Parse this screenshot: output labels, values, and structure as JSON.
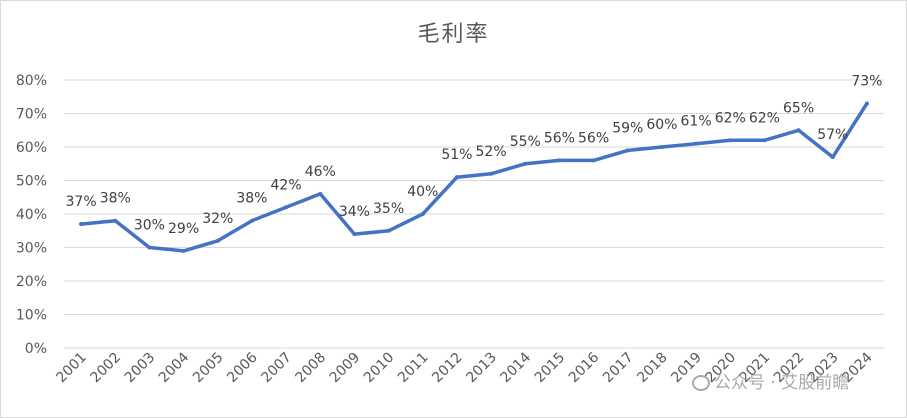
{
  "chart_data": {
    "type": "line",
    "title": "毛利率",
    "xlabel": "",
    "ylabel": "",
    "ylim": [
      0,
      0.8
    ],
    "yticks": [
      "0%",
      "10%",
      "20%",
      "30%",
      "40%",
      "50%",
      "60%",
      "70%",
      "80%"
    ],
    "categories": [
      "2001",
      "2002",
      "2003",
      "2004",
      "2005",
      "2006",
      "2007",
      "2008",
      "2009",
      "2010",
      "2011",
      "2012",
      "2013",
      "2014",
      "2015",
      "2016",
      "2017",
      "2018",
      "2019",
      "2020",
      "2021",
      "2022",
      "2023",
      "2024"
    ],
    "series": [
      {
        "values": [
          0.37,
          0.38,
          0.3,
          0.29,
          0.32,
          0.38,
          0.42,
          0.46,
          0.34,
          0.35,
          0.4,
          0.51,
          0.52,
          0.55,
          0.56,
          0.56,
          0.59,
          0.6,
          0.61,
          0.62,
          0.62,
          0.65,
          0.57,
          0.73
        ],
        "labels": [
          "37%",
          "38%",
          "30%",
          "29%",
          "32%",
          "38%",
          "42%",
          "46%",
          "34%",
          "35%",
          "40%",
          "51%",
          "52%",
          "55%",
          "56%",
          "56%",
          "59%",
          "60%",
          "61%",
          "62%",
          "62%",
          "65%",
          "57%",
          "73%"
        ]
      }
    ],
    "grid": true,
    "legend": "none",
    "line_color": "#4472c4"
  },
  "watermark": "公众号 · 艾股前瞻",
  "colors": {
    "grid": "#d9d9d9",
    "text": "#595959",
    "line": "#4472c4"
  }
}
